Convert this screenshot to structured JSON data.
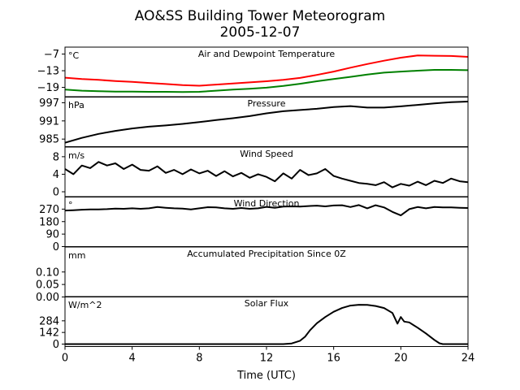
{
  "chart_data": {
    "type": "line",
    "title": "AO&SS Building Tower Meteorogram",
    "subtitle": "2005-12-07",
    "xlabel": "Time (UTC)",
    "x_ticks": [
      0,
      4,
      8,
      12,
      16,
      20,
      24
    ],
    "xlim": [
      0,
      24
    ],
    "panels": [
      {
        "title": "Air and Dewpoint Temperature",
        "unit": "°C",
        "ylim": [
          -22.5,
          -4.5
        ],
        "yticks": [
          -7,
          -13,
          -19
        ],
        "ytick_labels": [
          "−7",
          "−13",
          "−19"
        ],
        "series": [
          {
            "name": "",
            "color": "#ff0000",
            "x": [
              0,
              1,
              2,
              3,
              4,
              5,
              6,
              7,
              8,
              9,
              10,
              11,
              12,
              13,
              14,
              15,
              16,
              17,
              18,
              19,
              20,
              20.5,
              21,
              22,
              23,
              24
            ],
            "y": [
              -15.5,
              -16,
              -16.3,
              -16.7,
              -17,
              -17.4,
              -17.8,
              -18.2,
              -18.4,
              -18,
              -17.6,
              -17.2,
              -16.8,
              -16.3,
              -15.6,
              -14.5,
              -13.3,
              -11.9,
              -10.6,
              -9.4,
              -8.3,
              -7.9,
              -7.5,
              -7.6,
              -7.7,
              -8
            ]
          },
          {
            "name": "",
            "color": "#008000",
            "x": [
              0,
              1,
              2,
              3,
              4,
              5,
              6,
              7,
              8,
              9,
              10,
              11,
              12,
              13,
              14,
              15,
              16,
              17,
              18,
              19,
              20,
              21,
              22,
              23,
              24
            ],
            "y": [
              -19.8,
              -20.2,
              -20.4,
              -20.5,
              -20.5,
              -20.6,
              -20.6,
              -20.7,
              -20.6,
              -20.2,
              -19.8,
              -19.5,
              -19.1,
              -18.5,
              -17.7,
              -16.8,
              -16,
              -15.2,
              -14.4,
              -13.7,
              -13.3,
              -13,
              -12.7,
              -12.7,
              -12.8
            ]
          }
        ]
      },
      {
        "title": "Pressure",
        "unit": "hPa",
        "ylim": [
          982.5,
          999
        ],
        "yticks": [
          997,
          991,
          985
        ],
        "ytick_labels": [
          "997",
          "991",
          "985"
        ],
        "series": [
          {
            "name": "",
            "color": "#000000",
            "x": [
              0,
              1,
              2,
              3,
              4,
              5,
              6,
              7,
              8,
              9,
              10,
              11,
              12,
              13,
              14,
              15,
              16,
              17,
              18,
              19,
              20,
              21,
              22,
              23,
              24
            ],
            "y": [
              983.8,
              985.4,
              986.7,
              987.7,
              988.5,
              989.1,
              989.5,
              990.0,
              990.6,
              991.3,
              991.9,
              992.6,
              993.5,
              994.2,
              994.6,
              995.0,
              995.6,
              995.9,
              995.4,
              995.4,
              995.8,
              996.3,
              996.8,
              997.2,
              997.4
            ]
          }
        ]
      },
      {
        "title": "Wind Speed",
        "unit": "m/s",
        "ylim": [
          -1.2,
          10.2
        ],
        "yticks": [
          8,
          4,
          0
        ],
        "ytick_labels": [
          "8",
          "4",
          "0"
        ],
        "series": [
          {
            "name": "",
            "color": "#000000",
            "x": [
              0,
              0.5,
              1,
              1.5,
              2,
              2.5,
              3,
              3.5,
              4,
              4.5,
              5,
              5.5,
              6,
              6.5,
              7,
              7.5,
              8,
              8.5,
              9,
              9.5,
              10,
              10.5,
              11,
              11.5,
              12,
              12.5,
              13,
              13.5,
              14,
              14.5,
              15,
              15.5,
              16,
              16.5,
              17,
              17.5,
              18,
              18.5,
              19,
              19.5,
              20,
              20.5,
              21,
              21.5,
              22,
              22.5,
              23,
              23.5,
              24
            ],
            "y": [
              5.2,
              4.0,
              6.0,
              5.4,
              6.8,
              6.0,
              6.5,
              5.2,
              6.2,
              5.0,
              4.8,
              5.8,
              4.3,
              5.0,
              4.0,
              5.1,
              4.2,
              4.8,
              3.6,
              4.7,
              3.5,
              4.3,
              3.2,
              4.0,
              3.4,
              2.4,
              4.2,
              3.0,
              5.0,
              3.8,
              4.2,
              5.2,
              3.6,
              3.0,
              2.5,
              2.0,
              1.8,
              1.5,
              2.2,
              1.0,
              1.8,
              1.4,
              2.3,
              1.5,
              2.5,
              2.0,
              3.0,
              2.4,
              2.2
            ]
          }
        ]
      },
      {
        "title": "Wind Direction",
        "unit": "°",
        "ylim": [
          0,
          360
        ],
        "yticks": [
          270,
          180,
          90,
          0
        ],
        "ytick_labels": [
          "270",
          "180",
          "90",
          "0"
        ],
        "series": [
          {
            "name": "",
            "color": "#000000",
            "x": [
              0,
              0.5,
              1,
              1.5,
              2,
              2.5,
              3,
              3.5,
              4,
              4.5,
              5,
              5.5,
              6,
              6.5,
              7,
              7.5,
              8,
              8.5,
              9,
              9.5,
              10,
              10.5,
              11,
              11.5,
              12,
              12.5,
              13,
              13.5,
              14,
              14.5,
              15,
              15.5,
              16,
              16.5,
              17,
              17.5,
              18,
              18.5,
              19,
              19.5,
              20,
              20.5,
              21,
              21.5,
              22,
              22.5,
              23,
              23.5,
              24
            ],
            "y": [
              260,
              262,
              266,
              268,
              268,
              270,
              274,
              272,
              276,
              272,
              276,
              285,
              280,
              276,
              274,
              268,
              276,
              284,
              282,
              276,
              272,
              278,
              272,
              276,
              286,
              280,
              288,
              290,
              288,
              292,
              295,
              290,
              296,
              298,
              285,
              299,
              276,
              298,
              282,
              250,
              225,
              270,
              285,
              276,
              285,
              282,
              282,
              280,
              278
            ]
          }
        ]
      },
      {
        "title": "Accumulated Precipitation Since 0Z",
        "unit": "mm",
        "ylim": [
          0,
          0.2
        ],
        "yticks": [
          0.1,
          0.05,
          0.0
        ],
        "ytick_labels": [
          "0.10",
          "0.05",
          "0.00"
        ],
        "series": [
          {
            "name": "",
            "color": "#000000",
            "x": [
              0,
              24
            ],
            "y": [
              0,
              0
            ]
          }
        ]
      },
      {
        "title": "Solar Flux",
        "unit": "W/m^2",
        "ylim": [
          -30,
          580
        ],
        "yticks": [
          284,
          142,
          0
        ],
        "ytick_labels": [
          "284",
          "142",
          "0"
        ],
        "series": [
          {
            "name": "",
            "color": "#000000",
            "x": [
              0,
              13,
              13.5,
              14,
              14.3,
              14.6,
              15,
              15.5,
              16,
              16.5,
              17,
              17.5,
              18,
              18.5,
              19,
              19.5,
              19.8,
              20,
              20.2,
              20.5,
              21,
              21.5,
              22,
              22.3,
              22.5,
              23,
              24
            ],
            "y": [
              0,
              0,
              8,
              40,
              90,
              170,
              255,
              330,
              395,
              440,
              470,
              480,
              478,
              465,
              440,
              380,
              250,
              330,
              275,
              265,
              200,
              130,
              50,
              10,
              0,
              0,
              0
            ]
          }
        ]
      }
    ]
  }
}
